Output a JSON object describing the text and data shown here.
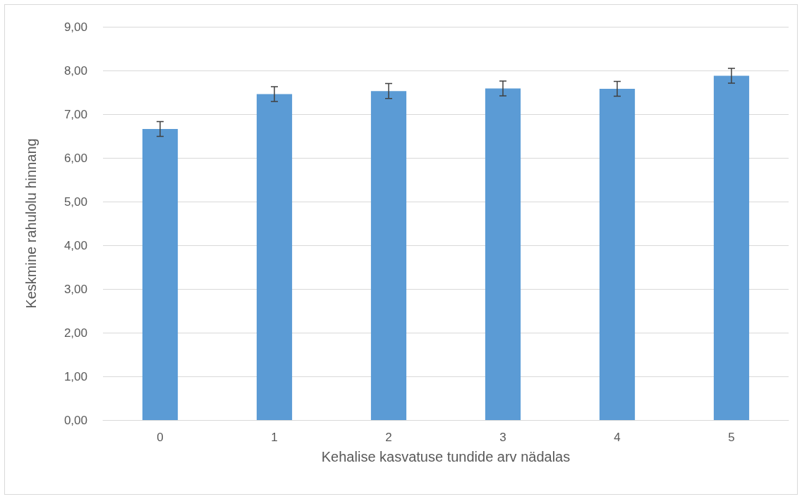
{
  "chart_data": {
    "type": "bar",
    "xlabel": "Kehalise kasvatuse tundide arv nädalas",
    "ylabel": "Keskmine rahulolu hinnang",
    "categories": [
      "0",
      "1",
      "2",
      "3",
      "4",
      "5"
    ],
    "values": [
      6.66,
      7.46,
      7.53,
      7.59,
      7.58,
      7.88
    ],
    "errors": [
      0.17,
      0.17,
      0.17,
      0.17,
      0.17,
      0.17
    ],
    "color": "#5b9bd5",
    "ylim": [
      0,
      9
    ],
    "yticks": [
      {
        "value": 0,
        "label": "0,00"
      },
      {
        "value": 1,
        "label": "1,00"
      },
      {
        "value": 2,
        "label": "2,00"
      },
      {
        "value": 3,
        "label": "3,00"
      },
      {
        "value": 4,
        "label": "4,00"
      },
      {
        "value": 5,
        "label": "5,00"
      },
      {
        "value": 6,
        "label": "6,00"
      },
      {
        "value": 7,
        "label": "7,00"
      },
      {
        "value": 8,
        "label": "8,00"
      },
      {
        "value": 9,
        "label": "9,00"
      }
    ],
    "grid": "y"
  }
}
